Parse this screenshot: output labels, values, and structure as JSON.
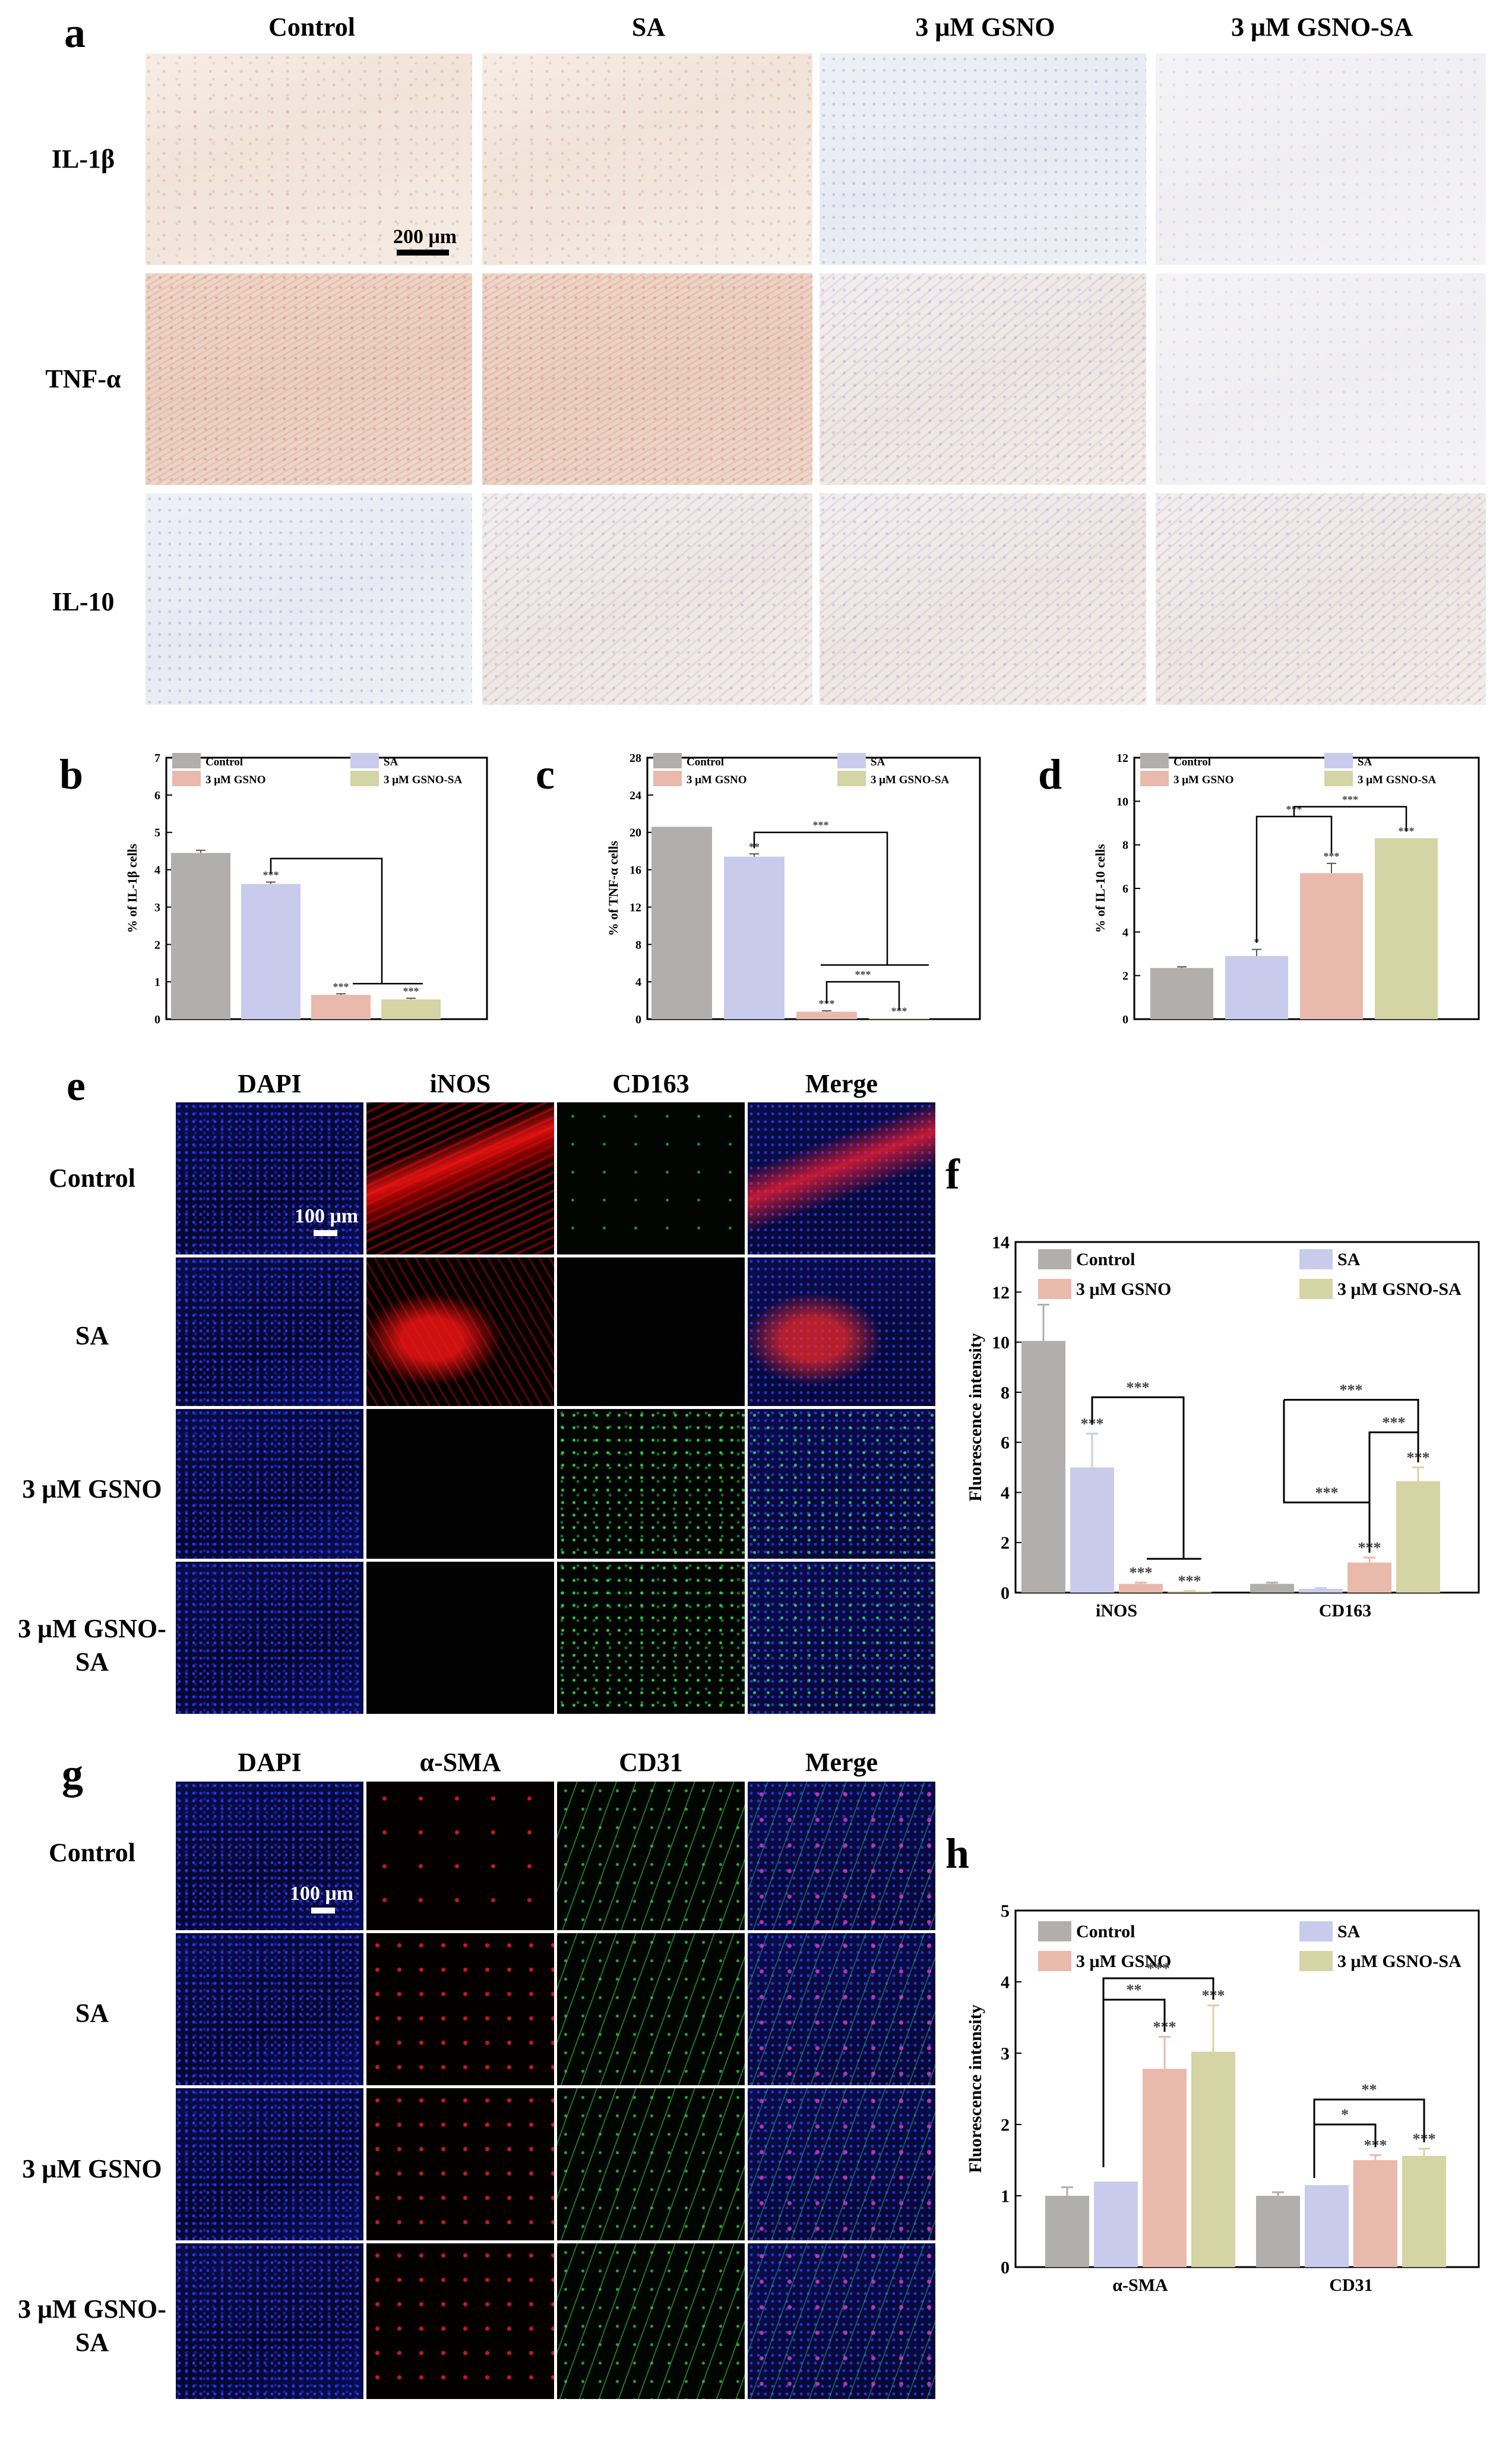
{
  "panel_letters": {
    "a": "a",
    "b": "b",
    "c": "c",
    "d": "d",
    "e": "e",
    "f": "f",
    "g": "g",
    "h": "h"
  },
  "panel_a": {
    "columns": [
      "Control",
      "SA",
      "3 μM GSNO",
      "3 μM GSNO-SA"
    ],
    "rows": [
      "IL-1β",
      "TNF-α",
      "IL-10"
    ],
    "scale_bar": "200 μm"
  },
  "panel_e": {
    "columns": [
      "DAPI",
      "iNOS",
      "CD163",
      "Merge"
    ],
    "rows": [
      "Control",
      "SA",
      "3 μM GSNO",
      "3 μM GSNO-SA"
    ],
    "scale_bar": "100 μm"
  },
  "panel_g": {
    "columns": [
      "DAPI",
      "α-SMA",
      "CD31",
      "Merge"
    ],
    "rows": [
      "Control",
      "SA",
      "3 μM GSNO",
      "3 μM GSNO-SA"
    ],
    "scale_bar": "100 μm"
  },
  "colors": {
    "Control": "#b1aeae",
    "SA": "#c9cbec",
    "3 μM GSNO": "#e9b9ab",
    "3 μM GSNO-SA": "#d4d4a4"
  },
  "chart_data": [
    {
      "id": "b",
      "type": "bar",
      "ylabel": "% of IL-1β cells",
      "ylim": [
        0,
        7
      ],
      "yticks": [
        0,
        1,
        2,
        3,
        4,
        5,
        6,
        7
      ],
      "legend": [
        "Control",
        "SA",
        "3 μM GSNO",
        "3 μM GSNO-SA"
      ],
      "categories": [
        "Control",
        "SA",
        "3 μM GSNO",
        "3 μM GSNO-SA"
      ],
      "values": [
        4.45,
        3.62,
        0.65,
        0.53
      ],
      "errors": [
        0.07,
        0.05,
        0.03,
        0.03
      ],
      "sig": [
        "",
        "***",
        "***",
        "***"
      ]
    },
    {
      "id": "c",
      "type": "bar",
      "ylabel": "% of TNF-α cells",
      "ylim": [
        0,
        28
      ],
      "yticks": [
        0,
        4,
        8,
        12,
        16,
        20,
        24,
        28
      ],
      "legend": [
        "Control",
        "SA",
        "3 μM GSNO",
        "3 μM GSNO-SA"
      ],
      "categories": [
        "Control",
        "SA",
        "3 μM GSNO",
        "3 μM GSNO-SA"
      ],
      "values": [
        20.6,
        17.4,
        0.8,
        0.1
      ],
      "errors": [
        0,
        0.3,
        0.1,
        0
      ],
      "sig": [
        "",
        "**",
        "***",
        "***"
      ],
      "brackets": [
        "***",
        "***"
      ]
    },
    {
      "id": "d",
      "type": "bar",
      "ylabel": "% of IL-10 cells",
      "ylim": [
        0,
        12
      ],
      "yticks": [
        0,
        2,
        4,
        6,
        8,
        10,
        12
      ],
      "legend": [
        "Control",
        "SA",
        "3 μM GSNO",
        "3 μM GSNO-SA"
      ],
      "categories": [
        "Control",
        "SA",
        "3 μM GSNO",
        "3 μM GSNO-SA"
      ],
      "values": [
        2.35,
        2.9,
        6.7,
        8.3
      ],
      "errors": [
        0.05,
        0.3,
        0.45,
        0
      ],
      "sig": [
        "",
        "*",
        "***",
        "***"
      ],
      "brackets": [
        "***",
        "***"
      ]
    },
    {
      "id": "f",
      "type": "bar",
      "ylabel": "Fluorescence intensity",
      "ylim": [
        0,
        14
      ],
      "yticks": [
        0,
        2,
        4,
        6,
        8,
        10,
        12,
        14
      ],
      "legend": [
        "Control",
        "SA",
        "3 μM GSNO",
        "3 μM GSNO-SA"
      ],
      "categories": [
        "iNOS",
        "CD163"
      ],
      "series": [
        {
          "name": "Control",
          "values": [
            10.05,
            0.35
          ],
          "errors": [
            1.45,
            0.05
          ]
        },
        {
          "name": "SA",
          "values": [
            5.0,
            0.15
          ],
          "errors": [
            1.35,
            0.03
          ]
        },
        {
          "name": "3 μM GSNO",
          "values": [
            0.35,
            1.2
          ],
          "errors": [
            0.05,
            0.2
          ]
        },
        {
          "name": "3 μM GSNO-SA",
          "values": [
            0.05,
            4.45
          ],
          "errors": [
            0.02,
            0.55
          ]
        }
      ],
      "sig": [
        [
          "",
          "***",
          "***",
          "***"
        ],
        [
          "",
          "",
          "***",
          "***"
        ]
      ],
      "brackets": [
        "***",
        "***",
        "***",
        "***"
      ]
    },
    {
      "id": "h",
      "type": "bar",
      "ylabel": "Fluorescence intensity",
      "ylim": [
        0,
        5
      ],
      "yticks": [
        0,
        1,
        2,
        3,
        4,
        5
      ],
      "legend": [
        "Control",
        "SA",
        "3 μM GSNO",
        "3 μM GSNO-SA"
      ],
      "categories": [
        "α-SMA",
        "CD31"
      ],
      "series": [
        {
          "name": "Control",
          "values": [
            1.0,
            1.0
          ],
          "errors": [
            0.12,
            0.05
          ]
        },
        {
          "name": "SA",
          "values": [
            1.2,
            1.15
          ],
          "errors": [
            0.0,
            0.0
          ]
        },
        {
          "name": "3 μM GSNO",
          "values": [
            2.78,
            1.5
          ],
          "errors": [
            0.45,
            0.07
          ]
        },
        {
          "name": "3 μM GSNO-SA",
          "values": [
            3.02,
            1.56
          ],
          "errors": [
            0.65,
            0.1
          ]
        }
      ],
      "sig": [
        [
          "",
          "",
          "***",
          "***"
        ],
        [
          "",
          "",
          "***",
          "***"
        ]
      ],
      "brackets": [
        "**",
        "***",
        "*",
        "**"
      ]
    }
  ]
}
